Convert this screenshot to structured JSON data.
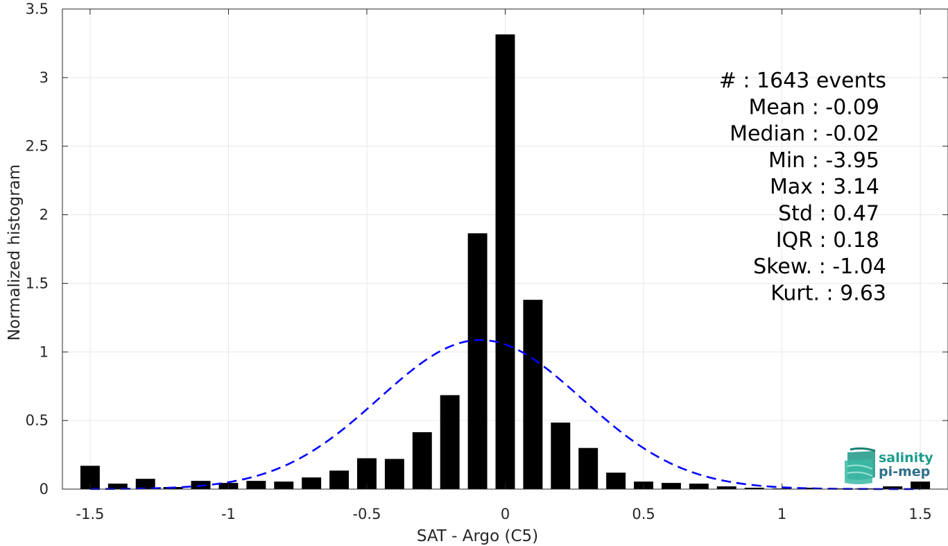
{
  "chart_data": {
    "type": "bar",
    "xlabel": "SAT - Argo (C5)",
    "ylabel": "Normalized histogram",
    "xlim": [
      -1.6,
      1.6
    ],
    "ylim": [
      0,
      3.5
    ],
    "grid": true,
    "x_ticks": [
      -1.5,
      -1,
      -0.5,
      0,
      0.5,
      1,
      1.5
    ],
    "x_tick_labels": [
      "-1.5",
      "-1",
      "-0.5",
      "0",
      "0.5",
      "1",
      "1.5"
    ],
    "y_ticks": [
      0,
      0.5,
      1,
      1.5,
      2,
      2.5,
      3,
      3.5
    ],
    "y_tick_labels": [
      "0",
      "0.5",
      "1",
      "1.5",
      "2",
      "2.5",
      "3",
      "3.5"
    ],
    "bar_color": "#000000",
    "bar_width": 0.07,
    "histogram": {
      "x": [
        -1.5,
        -1.4,
        -1.3,
        -1.2,
        -1.1,
        -1.0,
        -0.9,
        -0.8,
        -0.7,
        -0.6,
        -0.5,
        -0.4,
        -0.3,
        -0.2,
        -0.1,
        0.0,
        0.1,
        0.2,
        0.3,
        0.4,
        0.5,
        0.6,
        0.7,
        0.8,
        0.9,
        1.0,
        1.1,
        1.2,
        1.3,
        1.4,
        1.5
      ],
      "values": [
        0.17,
        0.04,
        0.075,
        0.015,
        0.06,
        0.045,
        0.06,
        0.055,
        0.085,
        0.135,
        0.225,
        0.22,
        0.415,
        0.685,
        1.865,
        3.315,
        1.38,
        0.485,
        0.3,
        0.12,
        0.055,
        0.045,
        0.04,
        0.02,
        0.01,
        0.005,
        0.01,
        0.005,
        0.005,
        0.02,
        0.055
      ]
    },
    "gaussian_fit": {
      "name": "",
      "color": "#0000ff",
      "style": "dashed",
      "mean": -0.09,
      "std": 0.367
    },
    "annotations": [
      "#  : 1643 events",
      "Mean : -0.09",
      "Median : -0.02",
      "Min : -3.95",
      "Max : 3.14",
      "Std : 0.47",
      "IQR : 0.18",
      "Skew. : -1.04",
      "Kurt. : 9.63"
    ]
  },
  "logo": {
    "line1": "salinity",
    "line2": "pi-mep",
    "color_primary": "#1a9c8c",
    "color_secondary": "#2f6f8a"
  }
}
